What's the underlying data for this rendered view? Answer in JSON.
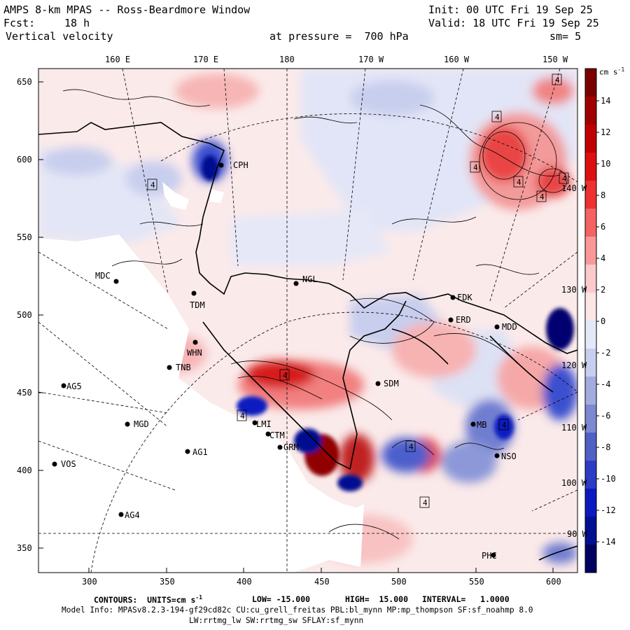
{
  "header": {
    "title": "AMPS 8-km MPAS -- Ross-Beardmore Window",
    "fcst_label": "Fcst:",
    "fcst_value": "18 h",
    "field_name": "Vertical velocity",
    "init": "Init: 00 UTC Fri 19 Sep 25",
    "valid": "Valid: 18 UTC Fri 19 Sep 25",
    "pressure": "at pressure =  700 hPa",
    "smoothing": "sm= 5"
  },
  "axes": {
    "top_longitudes": [
      "160 E",
      "170 E",
      "180",
      "170 W",
      "160 W",
      "150 W"
    ],
    "y_ticks": [
      "650",
      "600",
      "550",
      "500",
      "450",
      "400",
      "350"
    ],
    "x_ticks": [
      "300",
      "350",
      "400",
      "450",
      "500",
      "550",
      "600"
    ],
    "right_longitudes": [
      "140 W",
      "130 W",
      "120 W",
      "110 W",
      "100 W",
      "90 W"
    ]
  },
  "colorbar": {
    "units": "cm s",
    "units_exp": "-1",
    "labels": [
      "14",
      "12",
      "10",
      "8",
      "6",
      "4",
      "2",
      "0",
      "-2",
      "-4",
      "-6",
      "-8",
      "-10",
      "-12",
      "-14"
    ],
    "values": [
      16,
      14,
      12,
      10,
      8,
      6,
      4,
      2,
      0,
      -2,
      -4,
      -6,
      -8,
      -10,
      -12,
      -14,
      -16
    ],
    "colors": [
      "#7a0000",
      "#a00000",
      "#c00000",
      "#dd1010",
      "#ee3030",
      "#f46262",
      "#f99898",
      "#fbcaca",
      "#fbe5e5",
      "#e5e8f8",
      "#c8ceee",
      "#a3acdf",
      "#7d88d0",
      "#5060c5",
      "#2c3cc4",
      "#0a1ac0",
      "#001090",
      "#000060"
    ]
  },
  "stations": [
    {
      "code": "MDC"
    },
    {
      "code": "NGL"
    },
    {
      "code": "FDK"
    },
    {
      "code": "ERD"
    },
    {
      "code": "MDD"
    },
    {
      "code": "CPH"
    },
    {
      "code": "TDM"
    },
    {
      "code": "WHN"
    },
    {
      "code": "TNB"
    },
    {
      "code": "AG5"
    },
    {
      "code": "SDM"
    },
    {
      "code": "MGD"
    },
    {
      "code": "AG1"
    },
    {
      "code": "GRM"
    },
    {
      "code": "MB"
    },
    {
      "code": "NSO"
    },
    {
      "code": "VOS"
    },
    {
      "code": "AG4"
    },
    {
      "code": "PHC"
    },
    {
      "code": "LMI"
    },
    {
      "code": "CTM"
    }
  ],
  "maxima": [
    "4",
    "4",
    "4",
    "4",
    "4",
    "4",
    "4",
    "4",
    "4",
    "4",
    "4",
    "4"
  ],
  "footer": {
    "contours": "CONTOURS:  UNITS=cm s",
    "contours_exp": "-1",
    "low": "LOW= -15.000",
    "high": "HIGH=  15.000",
    "interval": "INTERVAL=   1.0000",
    "model_info": "Model Info: MPASv8.2.3-194-gf29cd82c CU:cu_grell_freitas PBL:bl_mynn MP:mp_thompson SF:sf_noahmp 8.0",
    "model_info2": "LW:rrtmg_lw SW:rrtmg_sw SFLAY:sf_mynn"
  }
}
